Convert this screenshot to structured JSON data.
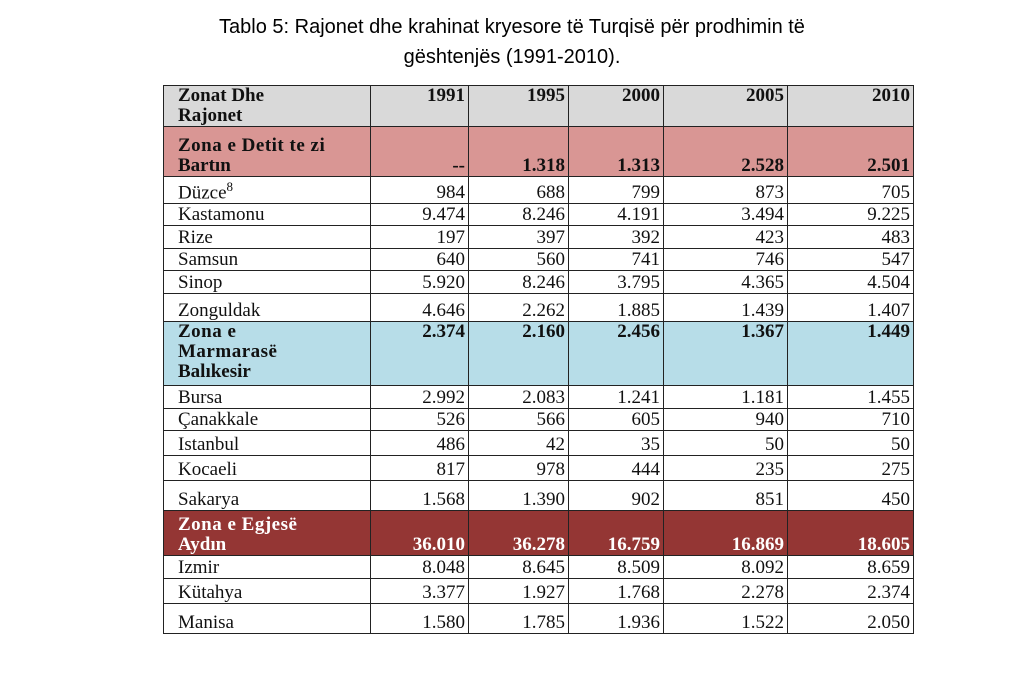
{
  "title": [
    "Tablo 5: Rajonet  dhe krahinat kryesore të Turqisë për prodhimin të",
    "gështenjës (1991-2010)."
  ],
  "table": {
    "header": {
      "label": "Zonat Dhe Rajonet",
      "years": [
        "1991",
        "1995",
        "2000",
        "2005",
        "2010"
      ]
    },
    "sections": [
      {
        "zone": "Zona e Detit te zi",
        "rows": [
          {
            "label": "Bartın",
            "values": [
              "--",
              "1.318",
              "1.313",
              "2.528",
              "2.501"
            ]
          },
          {
            "label": "Düzce",
            "note": "8",
            "values": [
              "984",
              "688",
              "799",
              "873",
              "705"
            ]
          },
          {
            "label": "Kastamonu",
            "values": [
              "9.474",
              "8.246",
              "4.191",
              "3.494",
              "9.225"
            ]
          },
          {
            "label": "Rize",
            "values": [
              "197",
              "397",
              "392",
              "423",
              "483"
            ]
          },
          {
            "label": "Samsun",
            "values": [
              "640",
              "560",
              "741",
              "746",
              "547"
            ]
          },
          {
            "label": "Sinop",
            "values": [
              "5.920",
              "8.246",
              "3.795",
              "4.365",
              "4.504"
            ]
          },
          {
            "label": "Zonguldak",
            "values": [
              "4.646",
              "2.262",
              "1.885",
              "1.439",
              "1.407"
            ]
          }
        ]
      },
      {
        "zone": "Zona e Marmarasë",
        "rows": [
          {
            "label": "Balıkesir",
            "values": [
              "2.374",
              "2.160",
              "2.456",
              "1.367",
              "1.449"
            ]
          },
          {
            "label": "Bursa",
            "values": [
              "2.992",
              "2.083",
              "1.241",
              "1.181",
              "1.455"
            ]
          },
          {
            "label": "Çanakkale",
            "values": [
              "526",
              "566",
              "605",
              "940",
              "710"
            ]
          },
          {
            "label": "Istanbul",
            "values": [
              "486",
              "42",
              "35",
              "50",
              "50"
            ]
          },
          {
            "label": "Kocaeli",
            "values": [
              "817",
              "978",
              "444",
              "235",
              "275"
            ]
          },
          {
            "label": "Sakarya",
            "values": [
              "1.568",
              "1.390",
              "902",
              "851",
              "450"
            ]
          }
        ]
      },
      {
        "zone": "Zona e Egjesë",
        "rows": [
          {
            "label": "Aydın",
            "values": [
              "36.010",
              "36.278",
              "16.759",
              "16.869",
              "18.605"
            ]
          },
          {
            "label": "Izmir",
            "values": [
              "8.048",
              "8.645",
              "8.509",
              "8.092",
              "8.659"
            ]
          },
          {
            "label": "Kütahya",
            "values": [
              "3.377",
              "1.927",
              "1.768",
              "2.278",
              "2.374"
            ]
          },
          {
            "label": "Manisa",
            "values": [
              "1.580",
              "1.785",
              "1.936",
              "1.522",
              "2.050"
            ]
          }
        ]
      }
    ]
  }
}
